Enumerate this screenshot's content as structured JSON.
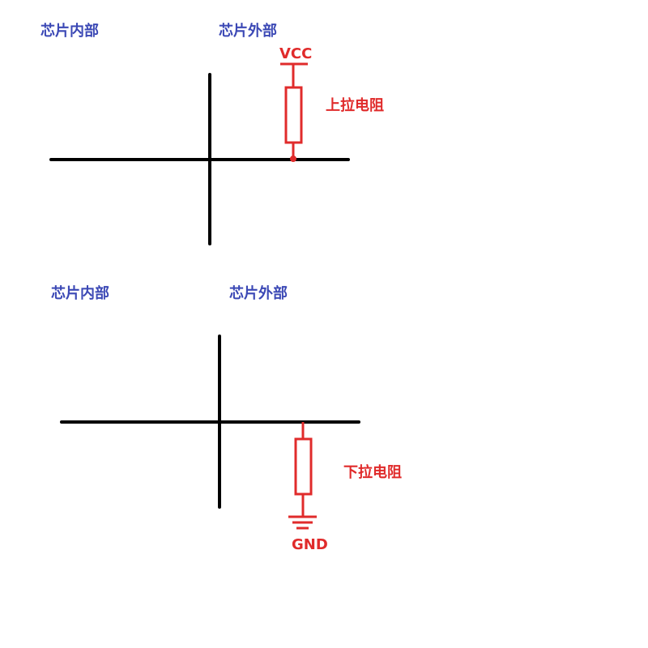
{
  "colors": {
    "wire": "#000000",
    "resistor": "#e02b2b",
    "region_label": "#3b48b5",
    "component_label": "#e02b2b"
  },
  "pull_up": {
    "inside_label": "芯片内部",
    "outside_label": "芯片外部",
    "supply_label": "VCC",
    "resistor_label": "上拉电阻"
  },
  "pull_down": {
    "inside_label": "芯片内部",
    "outside_label": "芯片外部",
    "ground_label": "GND",
    "resistor_label": "下拉电阻"
  }
}
